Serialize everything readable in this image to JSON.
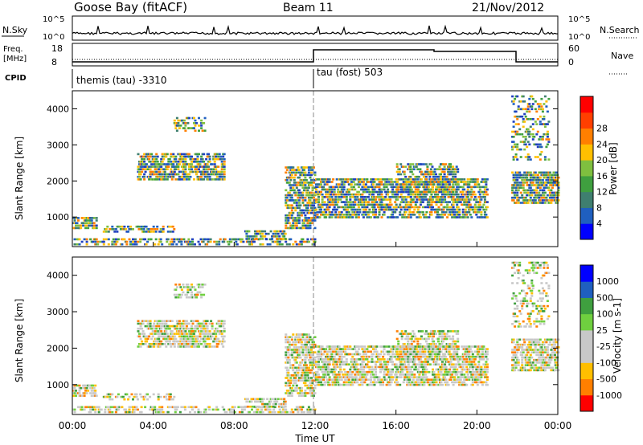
{
  "header": {
    "station": "Goose Bay (fitACF)",
    "beam": "Beam 11",
    "date": "21/Nov/2012"
  },
  "panels": {
    "nsky": {
      "label": "N.Sky",
      "left_ticks": [
        "10^5",
        "10^0"
      ],
      "right_ticks": [
        "10^5",
        "10^0"
      ],
      "right_label": "N.Search"
    },
    "freq": {
      "label_line1": "Freq.",
      "label_line2": "[MHz]",
      "left_ticks": [
        "18",
        "8"
      ],
      "right_ticks": [
        "60",
        "0"
      ],
      "right_label": "Nave"
    },
    "cpid": {
      "label": "CPID",
      "segments": [
        {
          "start_hour": 0,
          "text": "themis (tau) -3310"
        },
        {
          "start_hour": 12,
          "text": "tau (fost) 503"
        }
      ]
    }
  },
  "chart_data": [
    {
      "type": "heatmap",
      "ylabel": "Slant Range [km]",
      "y_ticks": [
        "1000",
        "2000",
        "3000",
        "4000"
      ],
      "colorbar": {
        "label": "Power [dB]",
        "ticks": [
          "4",
          "8",
          "12",
          "16",
          "20",
          "24",
          "28"
        ],
        "colors": [
          "#0000ff",
          "#1f5fbf",
          "#3f7f6f",
          "#3f9f3f",
          "#7fbf3f",
          "#ffbf00",
          "#ff7f00",
          "#ff3f00",
          "#ff0000"
        ]
      }
    },
    {
      "type": "heatmap",
      "ylabel": "Slant Range [km]",
      "y_ticks": [
        "1000",
        "2000",
        "3000",
        "4000"
      ],
      "colorbar": {
        "label": "Velocity [m s-1]",
        "ticks": [
          "1000",
          "500",
          "100",
          "25",
          "-25",
          "-100",
          "-500",
          "-1000"
        ],
        "colors": [
          "#0000ff",
          "#1f5fbf",
          "#3f9f3f",
          "#6fcf3f",
          "#c8c8c8",
          "#c8c8c8",
          "#ffbf00",
          "#ff7f00",
          "#ff0000"
        ]
      }
    }
  ],
  "x_axis": {
    "ticks": [
      "00:00",
      "04:00",
      "08:00",
      "12:00",
      "16:00",
      "20:00",
      "00:00"
    ],
    "label": "Time UT"
  }
}
